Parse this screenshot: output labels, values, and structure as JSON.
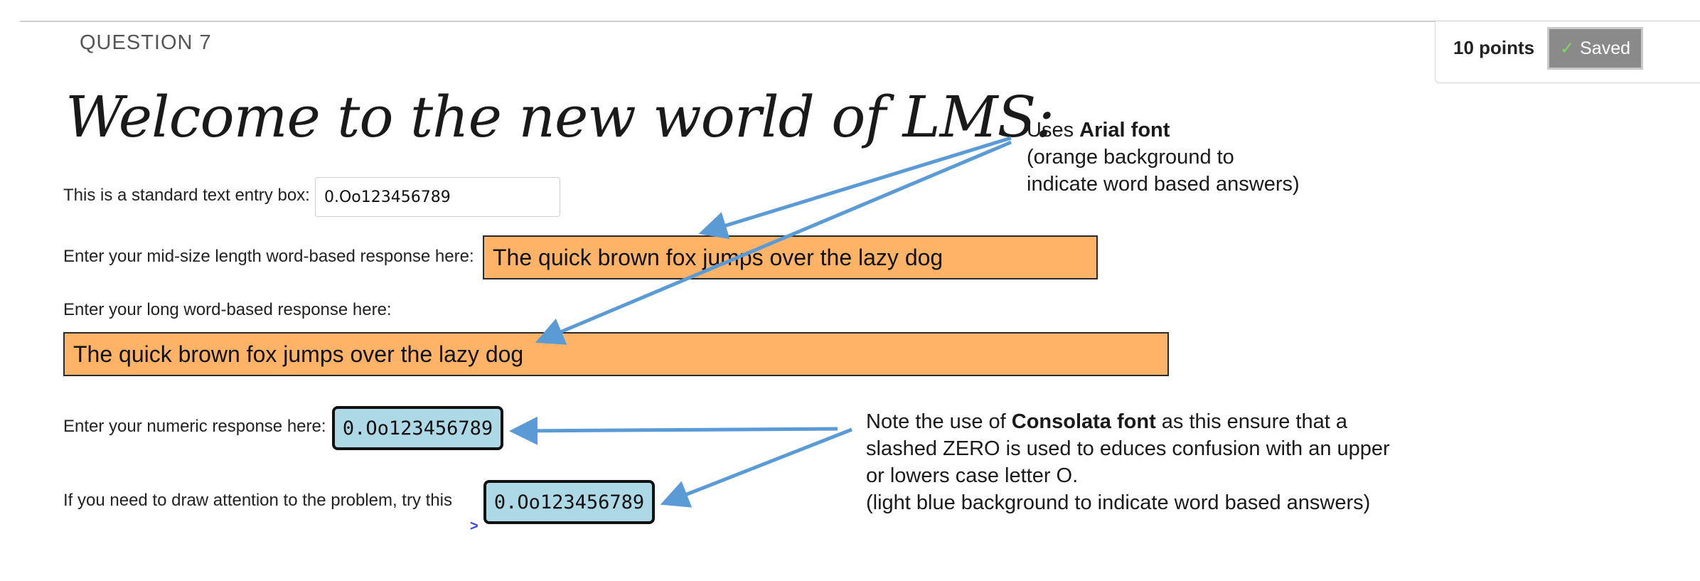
{
  "question": {
    "label": "QUESTION 7"
  },
  "points": {
    "label": "10 points",
    "saved_label": "Saved"
  },
  "heading": {
    "text": "Welcome to the new world of LMS:"
  },
  "fields": {
    "standard": {
      "label": "This is a standard text entry box:",
      "value": "0.Oo123456789"
    },
    "midsize": {
      "label": "Enter your mid-size length word-based response here:",
      "value": "The quick brown fox jumps over the lazy dog"
    },
    "long": {
      "label": "Enter your long word-based response here:",
      "value": "The quick brown fox jumps over the lazy dog"
    },
    "numeric": {
      "label": "Enter your numeric response here:",
      "value": "0.Oo123456789"
    },
    "attention": {
      "label": "If you need to draw attention to the problem, try this",
      "value": "0.Oo123456789",
      "caret": ">"
    }
  },
  "notes": {
    "arial": {
      "line1_prefix": "Uses ",
      "line1_bold": "Arial font",
      "line2": "(orange background to",
      "line3": "indicate word based answers)"
    },
    "consolata": {
      "line1_prefix": "Note the use of ",
      "line1_bold": "Consolata font",
      "line1_suffix": " as this ensure that a",
      "line2": "slashed ZERO is used to  educes confusion with an upper",
      "line3": "or lowers case letter O.",
      "line4": "(light blue background to indicate word based answers)"
    }
  },
  "colors": {
    "orange_answer": "#ffb366",
    "blue_answer": "#add8e6",
    "arrow": "#5b9bd5",
    "saved_button": "#8a8a8a",
    "check": "#7ed957"
  },
  "icons": {
    "saved": "check-icon"
  }
}
